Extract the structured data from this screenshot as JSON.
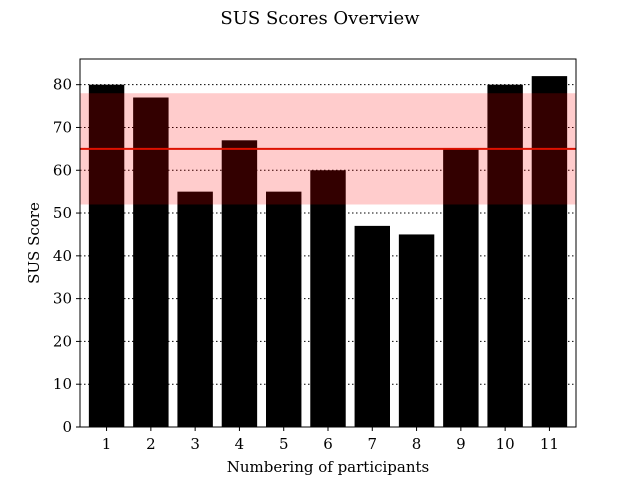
{
  "chart_data": {
    "type": "bar",
    "title": "SUS Scores Overview",
    "xlabel": "Numbering of participants",
    "ylabel": "SUS Score",
    "categories": [
      "1",
      "2",
      "3",
      "4",
      "5",
      "6",
      "7",
      "8",
      "9",
      "10",
      "11"
    ],
    "values": [
      80,
      77,
      55,
      67,
      55,
      60,
      47,
      45,
      65,
      80,
      82
    ],
    "ylim": [
      0,
      86
    ],
    "yticks": [
      0,
      10,
      20,
      30,
      40,
      50,
      60,
      70,
      80
    ],
    "grid": "y-dotted",
    "bar_color": "#000000",
    "reference_line": {
      "value": 65,
      "color": "#dd1100"
    },
    "reference_band": {
      "from": 52,
      "to": 78,
      "color": "#ff0000",
      "opacity": 0.2
    }
  }
}
